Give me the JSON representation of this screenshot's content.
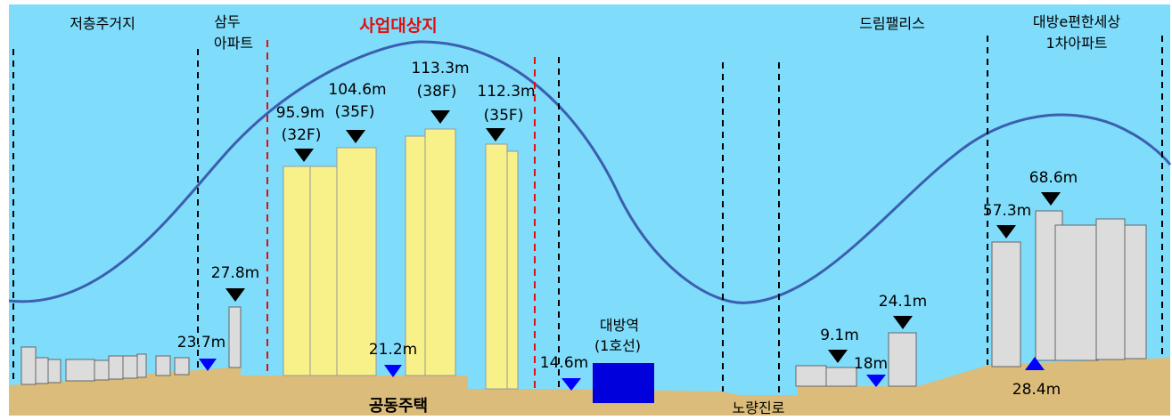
{
  "colors": {
    "sky": "#7fdcfa",
    "ground": "#dcbc7a",
    "project_building": "#f8f18a",
    "existing_building": "#dcdcdc",
    "skyline_curve": "#3a5fb0",
    "site_boundary": "#e01010",
    "station": "#0000dd",
    "ground_marker": "#0000ff"
  },
  "zones": {
    "low_rise_residential": "저층주거지",
    "samdu_apt": [
      "삼두",
      "아파트"
    ],
    "project_site": "사업대상지",
    "dream_palace": "드림팰리스",
    "daebang_apt": [
      "대방e편한세상",
      "1차아파트"
    ],
    "apartment_housing": "공동주택",
    "noryangjin_road": "노량진로"
  },
  "station": [
    "대방역",
    "(1호선)"
  ],
  "heights": {
    "b1": [
      "95.9m",
      "(32F)"
    ],
    "b2": [
      "104.6m",
      "(35F)"
    ],
    "b3": [
      "113.3m",
      "(38F)"
    ],
    "b4": [
      "112.3m",
      "(35F)"
    ],
    "samdu_top": "27.8m",
    "dream_low": "9.1m",
    "dream_high": "24.1m",
    "daebang_low": "57.3m",
    "daebang_high": "68.6m"
  },
  "ground_levels": {
    "samdu": "23.7m",
    "site": "21.2m",
    "station": "14.6m",
    "dream": "18m",
    "daebang": "28.4m"
  }
}
